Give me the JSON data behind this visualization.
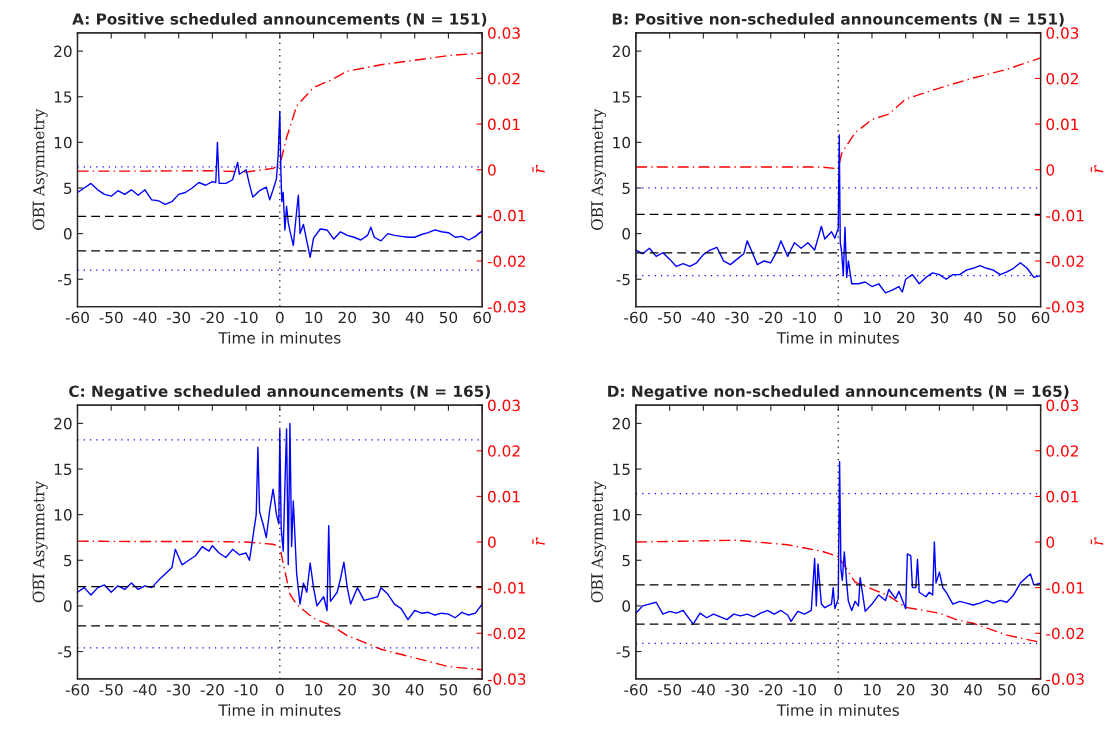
{
  "chart_data": [
    {
      "type": "line",
      "title": "A: Positive scheduled announcements (N = 151)",
      "xlabel": "Time in minutes",
      "ylabel": "O̅B̅I̅ Asymmetry",
      "y2label": "r̄",
      "xlim": [
        -60,
        60
      ],
      "xticks": [
        -60,
        -50,
        -40,
        -30,
        -20,
        -10,
        0,
        10,
        20,
        30,
        40,
        50,
        60
      ],
      "ylim": [
        -8,
        22
      ],
      "yticks": [
        -5,
        0,
        5,
        10,
        15,
        20
      ],
      "y2lim": [
        -0.03,
        0.03
      ],
      "y2ticks": [
        -0.03,
        -0.02,
        -0.01,
        0,
        0.01,
        0.02,
        0.03
      ],
      "grid": false,
      "ref_lines": [
        {
          "axis": "y",
          "value": 1.9,
          "color": "#000000",
          "line_style": "dashed"
        },
        {
          "axis": "y",
          "value": -1.9,
          "color": "#000000",
          "line_style": "dashed"
        },
        {
          "axis": "y",
          "value": 7.3,
          "color": "#0000ff",
          "line_style": "dotted"
        },
        {
          "axis": "y",
          "value": -4,
          "color": "#0000ff",
          "line_style": "dotted"
        },
        {
          "axis": "x",
          "value": 0,
          "color": "#000000",
          "line_style": "dotted"
        }
      ],
      "series": [
        {
          "color": "#0000ff",
          "line_style": "solid",
          "x": [
            -60,
            -58,
            -56,
            -54,
            -52,
            -50,
            -48,
            -46,
            -44,
            -42,
            -40,
            -38,
            -36,
            -34,
            -32,
            -30,
            -28,
            -26,
            -24,
            -22,
            -20,
            -19,
            -18.5,
            -18,
            -16,
            -14,
            -12.5,
            -12,
            -10,
            -9,
            -8,
            -6,
            -4,
            -3,
            -2,
            -1,
            -0.5,
            0,
            0.3,
            0.6,
            1,
            1.5,
            2,
            2.5,
            3,
            4,
            5,
            5.5,
            6,
            7,
            8,
            9,
            10,
            12,
            14,
            16,
            18,
            20,
            22,
            24,
            26,
            27,
            28,
            30,
            32,
            34,
            36,
            38,
            40,
            42,
            44,
            46,
            48,
            50,
            52,
            54,
            56,
            58,
            60
          ],
          "values": [
            4.5,
            5.0,
            5.5,
            4.8,
            4.3,
            4.1,
            4.7,
            4.3,
            4.8,
            4.2,
            4.8,
            3.7,
            3.6,
            3.2,
            3.5,
            4.3,
            4.5,
            5.0,
            5.6,
            5.3,
            5.7,
            5.6,
            10.0,
            5.5,
            5.5,
            5.9,
            7.8,
            6.5,
            7.0,
            5.4,
            4.0,
            4.7,
            5.1,
            3.7,
            4.8,
            6.0,
            8.5,
            13.4,
            7.0,
            3.5,
            4.5,
            0.4,
            3.0,
            1.2,
            0.3,
            -1.3,
            2.5,
            4.2,
            0.0,
            1.0,
            -0.8,
            -2.6,
            -0.5,
            0.5,
            0.4,
            -0.6,
            0.2,
            -0.2,
            -0.4,
            -0.7,
            -0.2,
            0.7,
            -0.4,
            -0.8,
            0.0,
            -0.2,
            -0.3,
            -0.4,
            -0.4,
            -0.1,
            0.1,
            0.4,
            0.2,
            0.1,
            -0.4,
            -0.3,
            -0.7,
            -0.3,
            0.3
          ]
        },
        {
          "color": "#ff0000",
          "line_style": "dashed",
          "axis": "y2",
          "x": [
            -60,
            -40,
            -20,
            -10,
            -2,
            0,
            2,
            5,
            10,
            15,
            20,
            30,
            40,
            50,
            60
          ],
          "values": [
            -0.0003,
            -0.0003,
            -0.0002,
            -0.0005,
            0.0003,
            0.001,
            0.007,
            0.014,
            0.018,
            0.0196,
            0.0216,
            0.023,
            0.024,
            0.025,
            0.0256
          ]
        }
      ]
    },
    {
      "type": "line",
      "title": "B: Positive non-scheduled announcements (N = 151)",
      "xlabel": "Time in minutes",
      "ylabel": "O̅B̅I̅ Asymmetry",
      "y2label": "r̄",
      "xlim": [
        -60,
        60
      ],
      "xticks": [
        -60,
        -50,
        -40,
        -30,
        -20,
        -10,
        0,
        10,
        20,
        30,
        40,
        50,
        60
      ],
      "ylim": [
        -8,
        22
      ],
      "yticks": [
        -5,
        0,
        5,
        10,
        15,
        20
      ],
      "y2lim": [
        -0.03,
        0.03
      ],
      "y2ticks": [
        -0.03,
        -0.02,
        -0.01,
        0,
        0.01,
        0.02,
        0.03
      ],
      "grid": false,
      "ref_lines": [
        {
          "axis": "y",
          "value": 2.1,
          "color": "#000000",
          "line_style": "dashed"
        },
        {
          "axis": "y",
          "value": -2.1,
          "color": "#000000",
          "line_style": "dashed"
        },
        {
          "axis": "y",
          "value": 5.0,
          "color": "#0000ff",
          "line_style": "dotted"
        },
        {
          "axis": "y",
          "value": -4.6,
          "color": "#0000ff",
          "line_style": "dotted"
        },
        {
          "axis": "x",
          "value": 0,
          "color": "#000000",
          "line_style": "dotted"
        }
      ],
      "series": [
        {
          "color": "#0000ff",
          "line_style": "solid",
          "x": [
            -60,
            -58,
            -56,
            -54,
            -52,
            -50,
            -48,
            -46,
            -44,
            -42,
            -40,
            -38,
            -36,
            -34,
            -32,
            -30,
            -28,
            -27,
            -25,
            -24,
            -22,
            -20,
            -18,
            -17,
            -15,
            -13,
            -11,
            -9,
            -7,
            -5,
            -4,
            -2,
            -1,
            0,
            0.3,
            0.6,
            1,
            1.5,
            2,
            2.5,
            3,
            4,
            6,
            8,
            10,
            12,
            14,
            16,
            18,
            19,
            20,
            22,
            24,
            26,
            28,
            30,
            32,
            34,
            36,
            38,
            40,
            42,
            44,
            46,
            48,
            50,
            52,
            54,
            56,
            58,
            60
          ],
          "values": [
            -1.8,
            -2.2,
            -1.6,
            -2.5,
            -2.1,
            -2.8,
            -3.6,
            -3.3,
            -3.6,
            -3.2,
            -2.3,
            -1.8,
            -1.5,
            -3.0,
            -3.4,
            -2.8,
            -2.2,
            -0.8,
            -2.5,
            -3.4,
            -3.0,
            -3.2,
            -1.8,
            -0.8,
            -2.5,
            -1.0,
            -1.6,
            -1.0,
            -1.8,
            0.8,
            -0.6,
            0.2,
            -0.5,
            0.6,
            10.8,
            -1.0,
            -2.0,
            -4.6,
            0.7,
            -4.8,
            -3.0,
            -5.5,
            -5.5,
            -5.3,
            -5.8,
            -5.5,
            -6.5,
            -6.2,
            -5.8,
            -6.4,
            -5.0,
            -4.5,
            -5.5,
            -4.8,
            -4.3,
            -4.5,
            -5.0,
            -4.5,
            -4.5,
            -4.0,
            -3.8,
            -3.5,
            -3.8,
            -4.0,
            -4.5,
            -4.2,
            -3.8,
            -3.2,
            -3.8,
            -4.8,
            -4.6
          ]
        },
        {
          "color": "#ff0000",
          "line_style": "dashed",
          "axis": "y2",
          "x": [
            -60,
            -40,
            -20,
            -5,
            0,
            1,
            5,
            10,
            15,
            20,
            30,
            40,
            50,
            60
          ],
          "values": [
            0.0006,
            0.0006,
            0.0006,
            0.0006,
            0.0002,
            0.0036,
            0.0081,
            0.011,
            0.0122,
            0.0155,
            0.0179,
            0.0201,
            0.022,
            0.0245
          ]
        }
      ]
    },
    {
      "type": "line",
      "title": "C: Negative scheduled announcements (N = 165)",
      "xlabel": "Time in minutes",
      "ylabel": "O̅B̅I̅ Asymmetry",
      "y2label": "r̄",
      "xlim": [
        -60,
        60
      ],
      "xticks": [
        -60,
        -50,
        -40,
        -30,
        -20,
        -10,
        0,
        10,
        20,
        30,
        40,
        50,
        60
      ],
      "ylim": [
        -8,
        22
      ],
      "yticks": [
        -5,
        0,
        5,
        10,
        15,
        20
      ],
      "y2lim": [
        -0.03,
        0.03
      ],
      "y2ticks": [
        -0.03,
        -0.02,
        -0.01,
        0,
        0.01,
        0.02,
        0.03
      ],
      "grid": false,
      "ref_lines": [
        {
          "axis": "y",
          "value": 2.1,
          "color": "#000000",
          "line_style": "dashed"
        },
        {
          "axis": "y",
          "value": -2.2,
          "color": "#000000",
          "line_style": "dashed"
        },
        {
          "axis": "y",
          "value": 18.2,
          "color": "#0000ff",
          "line_style": "dotted"
        },
        {
          "axis": "y",
          "value": -4.6,
          "color": "#0000ff",
          "line_style": "dotted"
        },
        {
          "axis": "x",
          "value": 0,
          "color": "#000000",
          "line_style": "dotted"
        }
      ],
      "series": [
        {
          "color": "#0000ff",
          "line_style": "solid",
          "x": [
            -60,
            -58,
            -56,
            -54,
            -52,
            -50,
            -48,
            -46,
            -44,
            -42,
            -40,
            -38,
            -36,
            -34,
            -32,
            -31,
            -29,
            -27,
            -25,
            -23,
            -21,
            -20,
            -18,
            -16,
            -14,
            -12,
            -10,
            -9,
            -8,
            -7,
            -6.5,
            -6,
            -5,
            -4,
            -3,
            -2,
            -1,
            -0.3,
            0,
            0.4,
            1,
            1.5,
            2,
            2.5,
            3,
            3.5,
            4,
            5,
            6,
            7,
            8,
            9,
            10,
            11,
            13,
            14,
            14.5,
            15,
            17,
            18,
            19,
            20,
            21,
            23,
            25,
            27,
            29,
            30,
            32,
            34,
            36,
            38,
            40,
            42,
            44,
            46,
            48,
            50,
            52,
            54,
            56,
            58,
            60
          ],
          "values": [
            1.5,
            2.0,
            1.2,
            2.0,
            2.3,
            1.5,
            2.2,
            1.8,
            2.5,
            1.8,
            2.2,
            2.0,
            2.8,
            3.5,
            4.2,
            6.2,
            4.5,
            5.0,
            5.5,
            6.5,
            6.0,
            6.6,
            5.8,
            5.3,
            6.2,
            5.6,
            5.8,
            5.0,
            7.5,
            10.0,
            17.4,
            10.3,
            9.0,
            7.5,
            10.5,
            12.8,
            10.0,
            9.0,
            19.3,
            8.5,
            6.0,
            13.0,
            19.4,
            4.5,
            20.0,
            6.5,
            11.5,
            3.5,
            0.2,
            2.5,
            1.5,
            4.7,
            2.0,
            0.0,
            1.0,
            -0.5,
            8.8,
            0.5,
            1.5,
            3.0,
            4.8,
            2.0,
            0.2,
            2.0,
            0.6,
            0.8,
            1.0,
            2.0,
            1.3,
            0.2,
            -0.3,
            -1.5,
            -0.5,
            -0.8,
            -0.7,
            -1.0,
            -0.8,
            -0.9,
            -1.3,
            -0.7,
            -1.0,
            -0.8,
            0.2
          ]
        },
        {
          "color": "#ff0000",
          "line_style": "dashed",
          "axis": "y2",
          "x": [
            -60,
            -40,
            -20,
            -10,
            -2,
            0,
            1,
            3,
            5,
            10,
            15,
            20,
            30,
            40,
            50,
            60
          ],
          "values": [
            0.0002,
            0.0001,
            0.0001,
            0.0,
            -0.0005,
            -0.001,
            -0.0047,
            -0.0114,
            -0.0137,
            -0.0167,
            -0.0182,
            -0.0205,
            -0.0235,
            -0.0254,
            -0.0273,
            -0.028
          ]
        }
      ]
    },
    {
      "type": "line",
      "title": "D: Negative non-scheduled announcements (N = 165)",
      "xlabel": "Time in minutes",
      "ylabel": "O̅B̅I̅ Asymmetry",
      "y2label": "r̄",
      "xlim": [
        -60,
        60
      ],
      "xticks": [
        -60,
        -50,
        -40,
        -30,
        -20,
        -10,
        0,
        10,
        20,
        30,
        40,
        50,
        60
      ],
      "ylim": [
        -8,
        22
      ],
      "yticks": [
        -5,
        0,
        5,
        10,
        15,
        20
      ],
      "y2lim": [
        -0.03,
        0.03
      ],
      "y2ticks": [
        -0.03,
        -0.02,
        -0.01,
        0,
        0.01,
        0.02,
        0.03
      ],
      "grid": false,
      "ref_lines": [
        {
          "axis": "y",
          "value": 2.3,
          "color": "#000000",
          "line_style": "dashed"
        },
        {
          "axis": "y",
          "value": -2.0,
          "color": "#000000",
          "line_style": "dashed"
        },
        {
          "axis": "y",
          "value": 12.3,
          "color": "#0000ff",
          "line_style": "dotted"
        },
        {
          "axis": "y",
          "value": -4.1,
          "color": "#0000ff",
          "line_style": "dotted"
        },
        {
          "axis": "x",
          "value": 0,
          "color": "#000000",
          "line_style": "dotted"
        }
      ],
      "series": [
        {
          "color": "#0000ff",
          "line_style": "solid",
          "x": [
            -60,
            -58,
            -56,
            -54,
            -52,
            -50,
            -48,
            -46,
            -44,
            -43,
            -41,
            -39,
            -37,
            -35,
            -33,
            -31,
            -29,
            -27,
            -25,
            -23,
            -21,
            -19,
            -17,
            -15,
            -14,
            -12,
            -10,
            -8,
            -7,
            -6.5,
            -6,
            -5,
            -4,
            -2,
            -1.5,
            -1,
            0,
            0.4,
            0.8,
            1.2,
            1.8,
            2.5,
            3,
            4,
            5,
            6,
            6.5,
            8,
            10,
            12,
            14,
            15,
            17,
            18,
            20,
            20.5,
            21.5,
            22,
            23,
            23.5,
            24,
            26,
            27,
            28,
            28.5,
            29,
            30,
            31,
            32,
            34,
            36,
            38,
            40,
            42,
            44,
            46,
            48,
            50,
            52,
            54,
            56,
            57,
            58,
            60
          ],
          "values": [
            -0.8,
            0.0,
            0.2,
            0.4,
            -0.9,
            -0.6,
            -0.8,
            -0.5,
            -1.5,
            -2.0,
            -0.8,
            -1.3,
            -0.9,
            -1.2,
            -1.5,
            -0.9,
            -1.1,
            -0.9,
            -1.2,
            -0.8,
            -0.5,
            -0.9,
            -0.5,
            -1.0,
            -1.7,
            -0.6,
            -0.9,
            -0.5,
            5.2,
            0.0,
            4.6,
            0.2,
            -0.2,
            0.2,
            2.0,
            -0.3,
            0.8,
            15.8,
            4.0,
            2.8,
            5.9,
            2.5,
            0.5,
            -0.5,
            0.5,
            0.0,
            3.1,
            -0.6,
            0.2,
            1.2,
            0.6,
            1.8,
            0.8,
            1.6,
            -0.3,
            5.7,
            5.5,
            2.0,
            2.0,
            5.1,
            1.5,
            1.0,
            1.5,
            1.2,
            7.0,
            2.5,
            3.7,
            2.0,
            1.5,
            0.2,
            0.5,
            0.3,
            0.1,
            0.3,
            0.6,
            0.3,
            0.6,
            0.4,
            1.2,
            2.5,
            3.2,
            3.5,
            2.3,
            2.5
          ]
        },
        {
          "color": "#ff0000",
          "line_style": "dashed",
          "axis": "y2",
          "x": [
            -60,
            -30,
            -15,
            -5,
            0,
            2,
            5,
            10,
            15,
            20,
            30,
            35,
            40,
            50,
            60
          ],
          "values": [
            0.0,
            0.0004,
            -0.0006,
            -0.002,
            -0.0032,
            -0.0054,
            -0.0088,
            -0.0103,
            -0.0118,
            -0.0143,
            -0.0156,
            -0.017,
            -0.0178,
            -0.0204,
            -0.022
          ]
        }
      ]
    }
  ]
}
